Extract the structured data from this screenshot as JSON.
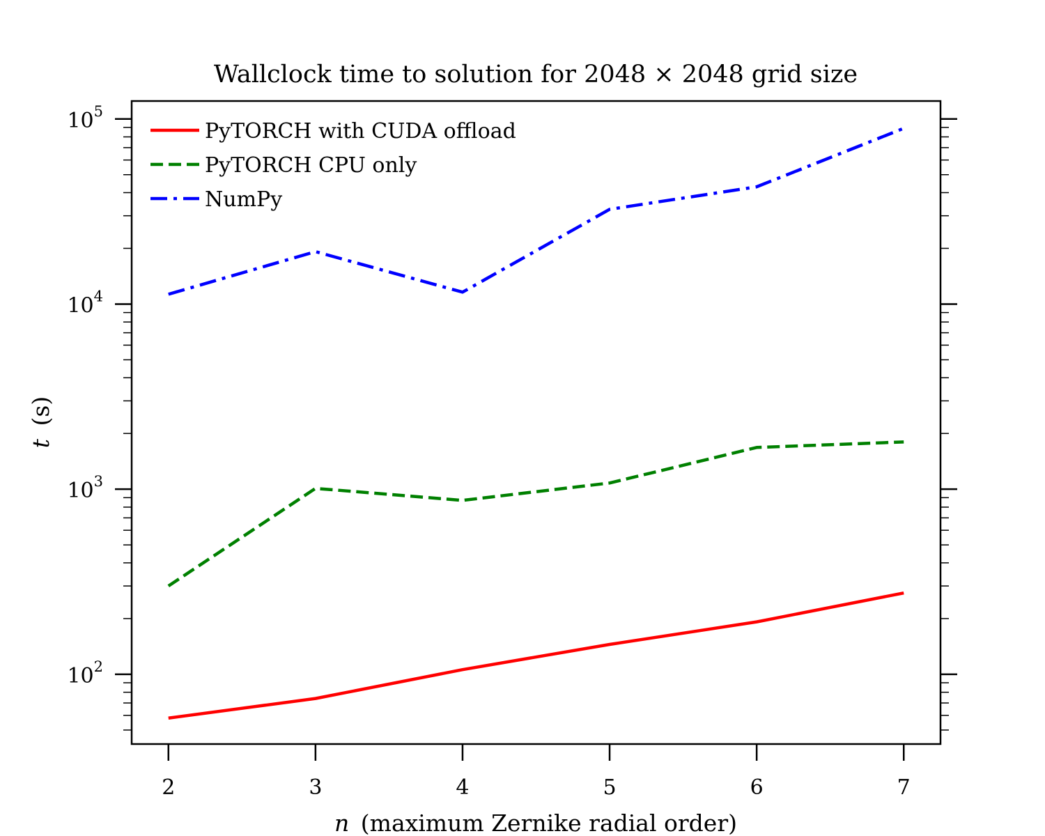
{
  "chart_data": {
    "type": "line",
    "title": "Wallclock time to solution for 2048 × 2048 grid size",
    "xlabel": {
      "var": "n",
      "text": "(maximum Zernike radial order)"
    },
    "ylabel": {
      "var": "t",
      "text": "(s)"
    },
    "x": [
      2,
      3,
      4,
      5,
      6,
      7
    ],
    "xlim": [
      1.75,
      7.25
    ],
    "ylim": [
      42,
      125000
    ],
    "yscale": "log",
    "x_ticks": [
      2,
      3,
      4,
      5,
      6,
      7
    ],
    "y_ticks": [
      {
        "value": 100,
        "base": "10",
        "exp": "2"
      },
      {
        "value": 1000,
        "base": "10",
        "exp": "3"
      },
      {
        "value": 10000,
        "base": "10",
        "exp": "4"
      },
      {
        "value": 100000,
        "base": "10",
        "exp": "5"
      }
    ],
    "grid": false,
    "legend_position": "top-left",
    "series": [
      {
        "name": "PyTORCH with CUDA offload",
        "color": "#ff0000",
        "dash": "solid",
        "values": [
          58,
          74,
          106,
          145,
          192,
          275
        ]
      },
      {
        "name": "PyTORCH CPU only",
        "color": "#008000",
        "dash": "dashed",
        "values": [
          300,
          1010,
          870,
          1080,
          1680,
          1800
        ]
      },
      {
        "name": "NumPy",
        "color": "#0000ff",
        "dash": "dashdot",
        "values": [
          11300,
          19200,
          11600,
          32500,
          43000,
          89000
        ]
      }
    ]
  }
}
